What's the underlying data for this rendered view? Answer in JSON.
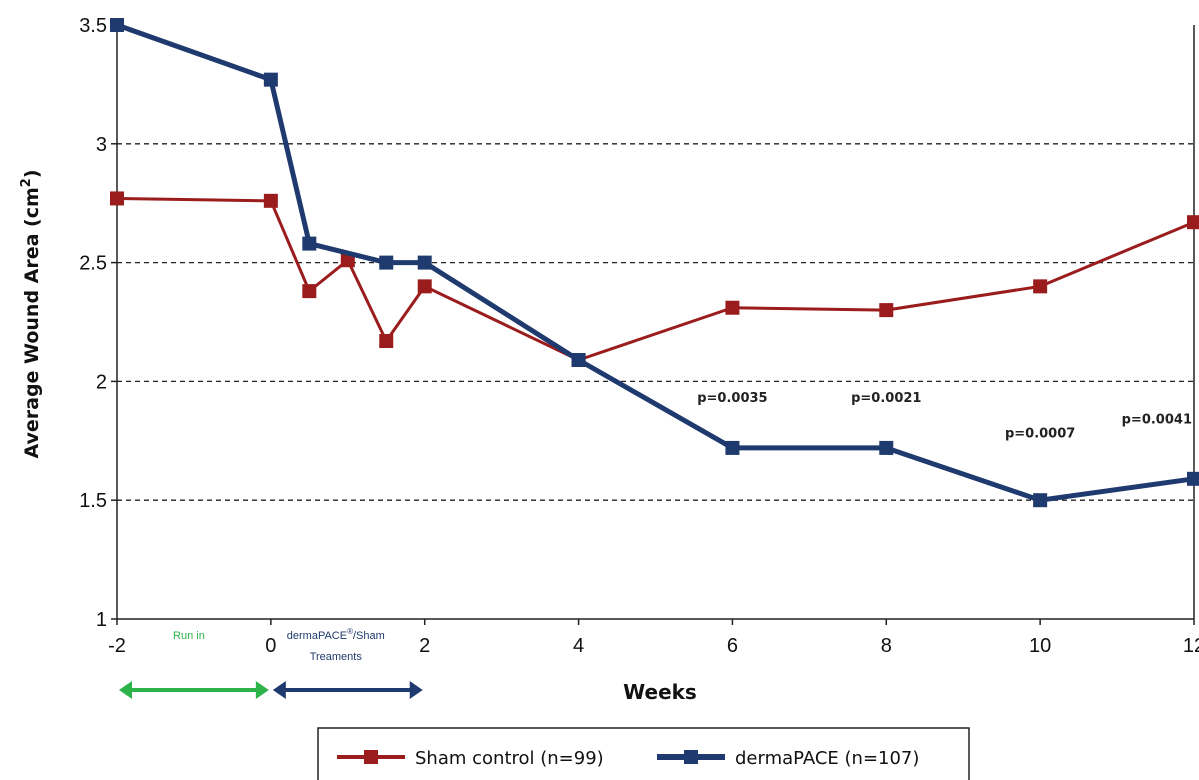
{
  "chart_data": {
    "type": "line",
    "title": "",
    "xlabel": "Weeks",
    "ylabel": "Average Wound Area (cm",
    "ylabel_sup": "2",
    "ylabel_close": ")",
    "xlim": [
      -2,
      12
    ],
    "ylim": [
      1,
      3.5
    ],
    "x_ticks": [
      -2,
      0,
      2,
      4,
      6,
      8,
      10,
      12
    ],
    "y_ticks": [
      1,
      1.5,
      2,
      2.5,
      3,
      3.5
    ],
    "y_tick_labels": [
      "1",
      "1.5",
      "2",
      "2.5",
      "3",
      "3.5"
    ],
    "grid": "horizontal-dashed",
    "series": [
      {
        "name": "Sham control (n=99)",
        "color": "#9b1c1c",
        "x": [
          -2,
          0,
          0.5,
          1,
          1.5,
          2,
          4,
          6,
          8,
          10,
          12
        ],
        "y": [
          2.77,
          2.76,
          2.38,
          2.51,
          2.17,
          2.4,
          2.09,
          2.31,
          2.3,
          2.4,
          2.67
        ]
      },
      {
        "name": "dermaPACE (n=107)",
        "color": "#1f3a6e",
        "x": [
          -2,
          0,
          0.5,
          1.5,
          2,
          4,
          6,
          8,
          10,
          12
        ],
        "y": [
          3.5,
          3.27,
          2.58,
          2.5,
          2.5,
          2.09,
          1.72,
          1.72,
          1.5,
          1.59
        ]
      }
    ],
    "annotations": [
      {
        "text": "p=0.0035",
        "x": 6,
        "y": 1.93
      },
      {
        "text": "p=0.0021",
        "x": 8,
        "y": 1.93
      },
      {
        "text": "p=0.0007",
        "x": 10,
        "y": 1.78
      },
      {
        "text": "p=0.0041",
        "x": 12,
        "y": 1.84
      }
    ],
    "phases": [
      {
        "label": "Run in",
        "from": -2,
        "to": 0,
        "color": "#2db34a"
      },
      {
        "label_main": "dermaPACE",
        "label_sup": "®",
        "label_rest": "/Sham",
        "label_line2": "Treaments",
        "from": 0,
        "to": 2,
        "color": "#1f3a6e"
      }
    ],
    "legend": {
      "position": "bottom-center"
    }
  }
}
